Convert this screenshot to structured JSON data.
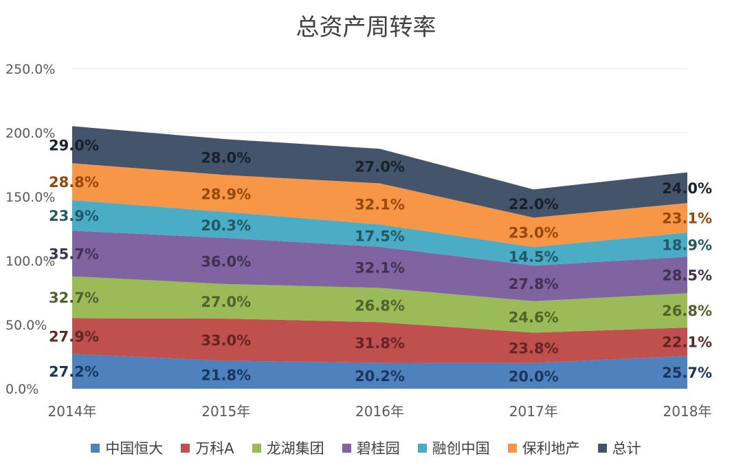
{
  "chart_data": {
    "type": "area",
    "stacked": true,
    "title": "总资产周转率",
    "categories": [
      "2014年",
      "2015年",
      "2016年",
      "2017年",
      "2018年"
    ],
    "y_ticks": [
      "0.0%",
      "50.0%",
      "100.0%",
      "150.0%",
      "200.0%",
      "250.0%"
    ],
    "ylim": [
      0,
      250
    ],
    "grid": true,
    "legend_position": "bottom",
    "series": [
      {
        "name": "中国恒大",
        "color": "#4F81BD",
        "label_color": "#17375E",
        "values": [
          27.2,
          21.8,
          20.2,
          20.0,
          25.7
        ],
        "labels": [
          "27.2%",
          "21.8%",
          "20.2%",
          "20.0%",
          "25.7%"
        ]
      },
      {
        "name": "万科A",
        "color": "#C0504D",
        "label_color": "#632523",
        "values": [
          27.9,
          33.0,
          31.8,
          23.8,
          22.1
        ],
        "labels": [
          "27.9%",
          "33.0%",
          "31.8%",
          "23.8%",
          "22.1%"
        ]
      },
      {
        "name": "龙湖集团",
        "color": "#9BBB59",
        "label_color": "#4F6228",
        "values": [
          32.7,
          27.0,
          26.8,
          24.6,
          26.8
        ],
        "labels": [
          "32.7%",
          "27.0%",
          "26.8%",
          "24.6%",
          "26.8%"
        ]
      },
      {
        "name": "碧桂园",
        "color": "#8064A2",
        "label_color": "#3F3151",
        "values": [
          35.7,
          36.0,
          32.1,
          27.8,
          28.5
        ],
        "labels": [
          "35.7%",
          "36.0%",
          "32.1%",
          "27.8%",
          "28.5%"
        ]
      },
      {
        "name": "融创中国",
        "color": "#4BACC6",
        "label_color": "#215967",
        "values": [
          23.9,
          20.3,
          17.5,
          14.5,
          18.9
        ],
        "labels": [
          "23.9%",
          "20.3%",
          "17.5%",
          "14.5%",
          "18.9%"
        ]
      },
      {
        "name": "保利地产",
        "color": "#F79646",
        "label_color": "#974806",
        "values": [
          28.8,
          28.9,
          32.1,
          23.0,
          23.1
        ],
        "labels": [
          "28.8%",
          "28.9%",
          "32.1%",
          "23.0%",
          "23.1%"
        ]
      },
      {
        "name": "总计",
        "color": "#44546A",
        "label_color": "#17202B",
        "values": [
          29.0,
          28.0,
          27.0,
          22.0,
          24.0
        ],
        "labels": [
          "29.0%",
          "28.0%",
          "27.0%",
          "22.0%",
          "24.0%"
        ]
      }
    ]
  }
}
